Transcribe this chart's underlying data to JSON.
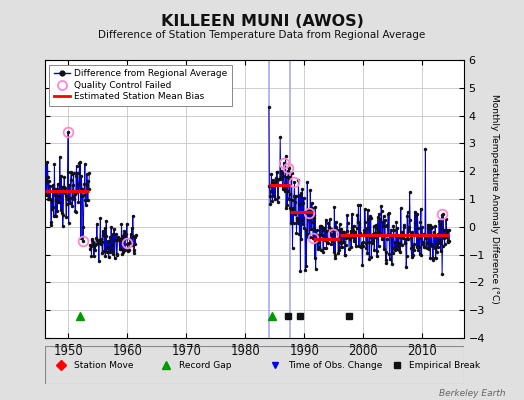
{
  "title": "KILLEEN MUNI (AWOS)",
  "subtitle": "Difference of Station Temperature Data from Regional Average",
  "ylabel_right": "Monthly Temperature Anomaly Difference (°C)",
  "xlim": [
    1946,
    2017
  ],
  "ylim": [
    -4,
    6
  ],
  "yticks": [
    -4,
    -3,
    -2,
    -1,
    0,
    1,
    2,
    3,
    4,
    5,
    6
  ],
  "xticks": [
    1950,
    1960,
    1970,
    1980,
    1990,
    2000,
    2010
  ],
  "background_color": "#e0e0e0",
  "plot_bg_color": "#ffffff",
  "grid_color": "#c8c8c8",
  "line_color": "#0000cc",
  "bias_color": "#ff0000",
  "qc_color": "#ff88cc",
  "watermark": "Berkeley Earth",
  "segment_biases": [
    {
      "x_start": 1946.0,
      "x_end": 1953.5,
      "bias": 1.3
    },
    {
      "x_start": 1984.0,
      "x_end": 1987.5,
      "bias": 1.5
    },
    {
      "x_start": 1987.5,
      "x_end": 1991.5,
      "bias": 0.55
    },
    {
      "x_start": 1991.5,
      "x_end": 1996.0,
      "bias": -0.45
    },
    {
      "x_start": 1996.0,
      "x_end": 2014.5,
      "bias": -0.3
    }
  ],
  "vertical_lines": [
    {
      "x": 1984.0,
      "color": "#aaaaee",
      "lw": 1.2
    },
    {
      "x": 1987.5,
      "color": "#aaaaee",
      "lw": 1.2
    }
  ],
  "record_gaps": [
    1952.0,
    1984.5
  ],
  "empirical_breaks": [
    1987.2,
    1989.2,
    1997.5
  ],
  "obs_changes": [],
  "station_moves": [],
  "qc_failed_points": [
    {
      "year": 1950.0,
      "value": 3.4
    },
    {
      "year": 1952.5,
      "value": -0.5
    },
    {
      "year": 1960.0,
      "value": -0.6
    },
    {
      "year": 1986.5,
      "value": 2.3
    },
    {
      "year": 1987.3,
      "value": 2.1
    },
    {
      "year": 1988.3,
      "value": 1.6
    },
    {
      "year": 1990.8,
      "value": 0.5
    },
    {
      "year": 1991.5,
      "value": -0.4
    },
    {
      "year": 1994.8,
      "value": -0.25
    },
    {
      "year": 2013.3,
      "value": 0.45
    }
  ]
}
